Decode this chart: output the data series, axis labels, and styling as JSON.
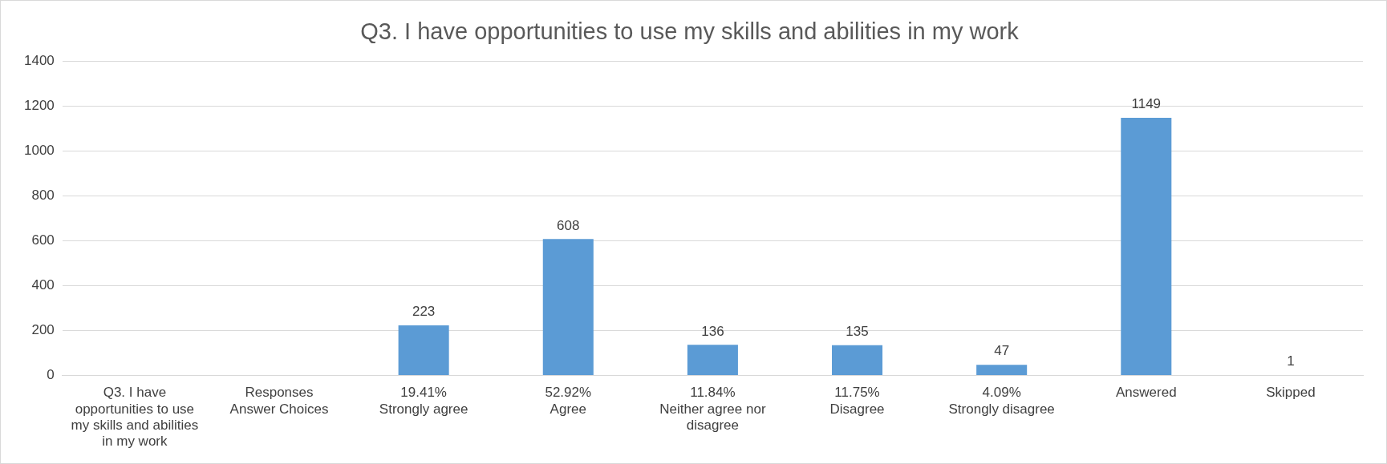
{
  "chart_data": {
    "type": "bar",
    "title": "Q3. I have opportunities to use my skills and abilities in my work",
    "categories": [
      "Q3. I have opportunities to use my skills and abilities in my work",
      "Responses\nAnswer Choices",
      "19.41%\nStrongly agree",
      "52.92%\nAgree",
      "11.84%\nNeither agree nor disagree",
      "11.75%\nDisagree",
      "4.09%\nStrongly disagree",
      "Answered",
      "Skipped"
    ],
    "values": [
      null,
      null,
      223,
      608,
      136,
      135,
      47,
      1149,
      1
    ],
    "color": "#5b9bd5",
    "ylim": [
      0,
      1400
    ],
    "yticks": [
      0,
      200,
      400,
      600,
      800,
      1000,
      1200,
      1400
    ],
    "grid": "y",
    "legend": false,
    "data_labels": true
  }
}
